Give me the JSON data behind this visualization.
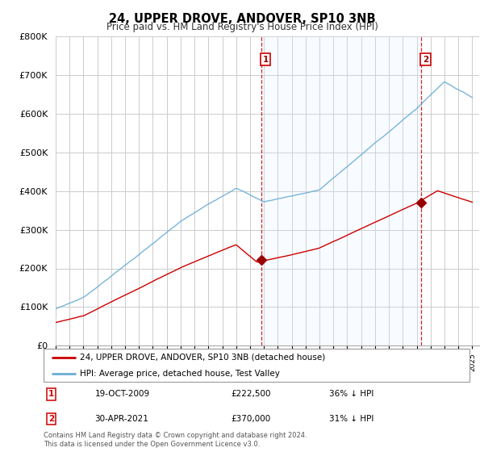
{
  "title": "24, UPPER DROVE, ANDOVER, SP10 3NB",
  "subtitle": "Price paid vs. HM Land Registry's House Price Index (HPI)",
  "hpi_label": "HPI: Average price, detached house, Test Valley",
  "property_label": "24, UPPER DROVE, ANDOVER, SP10 3NB (detached house)",
  "footnote": "Contains HM Land Registry data © Crown copyright and database right 2024.\nThis data is licensed under the Open Government Licence v3.0.",
  "point1_date": "19-OCT-2009",
  "point1_price": 222500,
  "point1_note": "36% ↓ HPI",
  "point2_date": "30-APR-2021",
  "point2_price": 370000,
  "point2_note": "31% ↓ HPI",
  "hpi_color": "#6aaed6",
  "property_color": "#cc0000",
  "marker_color": "#990000",
  "shade_color": "#ddeeff",
  "ylim": [
    0,
    800000
  ],
  "yticks": [
    0,
    100000,
    200000,
    300000,
    400000,
    500000,
    600000,
    700000,
    800000
  ],
  "background_color": "#ffffff",
  "grid_color": "#cccccc",
  "t1": 2009.8,
  "t2": 2021.33
}
